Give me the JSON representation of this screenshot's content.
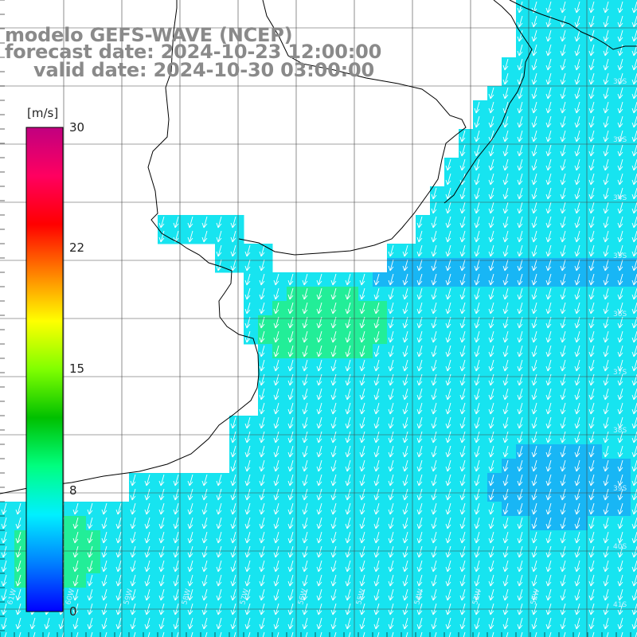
{
  "header": {
    "model": "modelo GEFS-WAVE (NCEP)",
    "forecast": "forecast date: 2024-10-23 12:00:00",
    "valid": "valid date: 2024-10-30 03:00:00"
  },
  "colorbar": {
    "unit": "[m/s]",
    "ticks": [
      "30",
      "22",
      "15",
      "8",
      "0"
    ],
    "colors": [
      "#0000ff",
      "#0080ff",
      "#00f0ff",
      "#00ff80",
      "#00c000",
      "#80ff00",
      "#ffff00",
      "#ff8000",
      "#ff0000",
      "#ff0060",
      "#c00080"
    ]
  },
  "map": {
    "ocean_colors": {
      "cyan": "#17e4f0",
      "blue": "#18b6f5",
      "green": "#22ee98",
      "grid": "#444444",
      "arrow": "#ffffff",
      "coast": "#000000"
    },
    "lat_labels": [
      "32S",
      "33S",
      "34S",
      "35S",
      "36S",
      "37S",
      "38S",
      "39S",
      "40S",
      "41S"
    ],
    "lon_labels": [
      "61W",
      "60W",
      "59W",
      "58W",
      "57W",
      "56W",
      "55W",
      "54W",
      "53W",
      "52W"
    ],
    "wind_direction": "northeast-to-southwest"
  }
}
